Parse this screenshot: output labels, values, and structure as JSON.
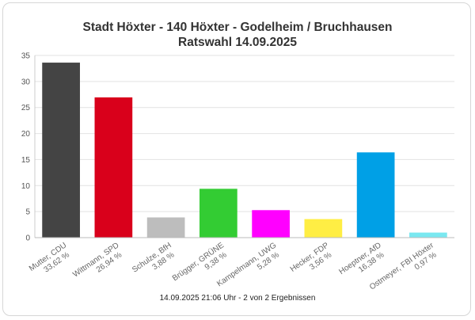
{
  "chart": {
    "title": "Stadt Höxter - 140 Höxter - Godelheim / Bruchhausen",
    "subtitle": "Ratswahl 14.09.2025",
    "footer": "14.09.2025 21:06 Uhr - 2 von 2 Ergebnissen"
  },
  "chart_data": {
    "type": "bar",
    "title": "Stadt Höxter - 140 Höxter - Godelheim / Bruchhausen",
    "subtitle": "Ratswahl 14.09.2025",
    "xlabel": "",
    "ylabel": "",
    "ylim": [
      0,
      35
    ],
    "yticks": [
      "0",
      "5",
      "10",
      "15",
      "20",
      "25",
      "30",
      "35"
    ],
    "grid": true,
    "legend": "none",
    "categories": [
      "Mutter, CDU",
      "Wittmann, SPD",
      "Schulze, BfH",
      "Brügger, GRÜNE",
      "Kampelmann, UWG",
      "Hecker, FDP",
      "Hoeptner, AfD",
      "Ostmeyer, FBI Höxter"
    ],
    "values": [
      33.62,
      26.94,
      3.88,
      9.38,
      5.28,
      3.56,
      16.38,
      0.97
    ],
    "value_labels": [
      "33,62 %",
      "26,94 %",
      "3,88 %",
      "9,38 %",
      "5,28 %",
      "3,56 %",
      "16,38 %",
      "0,97 %"
    ],
    "colors": [
      "#444444",
      "#d9001b",
      "#bdbdbd",
      "#33cc33",
      "#ff00ff",
      "#ffee44",
      "#00a0e6",
      "#7ae8f0"
    ]
  }
}
